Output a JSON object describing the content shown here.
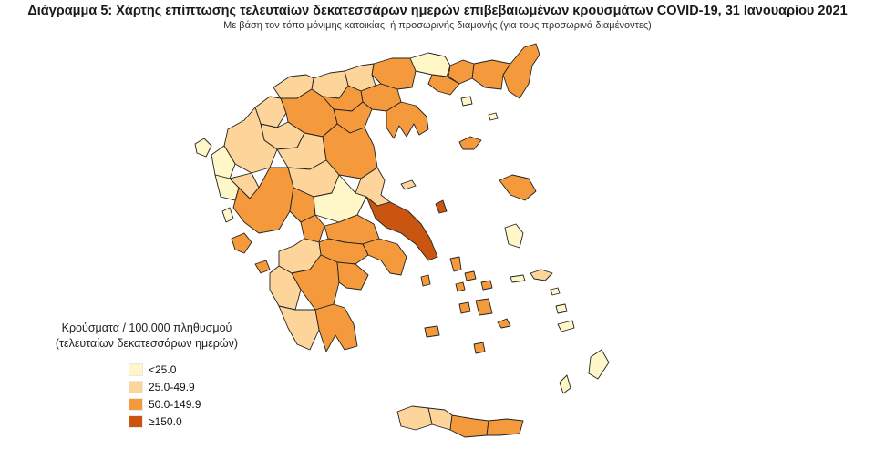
{
  "title": "Διάγραμμα 5: Χάρτης επίπτωσης τελευταίων δεκατεσσάρων ημερών επιβεβαιωμένων κρουσμάτων COVID-19, 31 Ιανουαρίου 2021",
  "subtitle": "Με βάση τον τόπο μόνιμης κατοικίας, ή προσωρινής διαμονής (για τους προσωρινά διαμένοντες)",
  "legend": {
    "title_line1": "Κρούσματα / 100.000 πληθυσμού",
    "title_line2": "(τελευταίων δεκατεσσάρων ημερών)",
    "items": [
      {
        "label": "<25.0",
        "color": "#fff7c8"
      },
      {
        "label": "25.0-49.9",
        "color": "#fdd59a"
      },
      {
        "label": "50.0-149.9",
        "color": "#f59a3c"
      },
      {
        "label": "≥150.0",
        "color": "#c95510"
      }
    ]
  }
}
